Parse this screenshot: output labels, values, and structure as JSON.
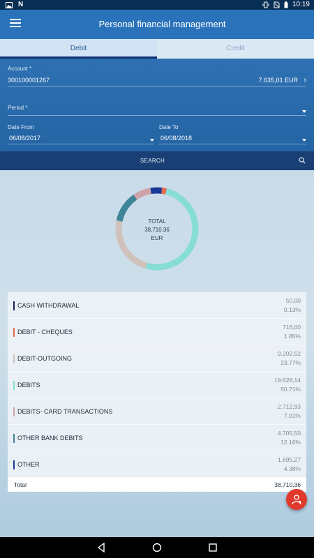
{
  "status_bar": {
    "time": "10:19",
    "left_icons": [
      "image-icon",
      "n-icon"
    ],
    "right_icons": [
      "vibrate-icon",
      "no-sim-icon",
      "battery-icon"
    ]
  },
  "header": {
    "title": "Personal financial management"
  },
  "tabs": [
    {
      "label": "Debit",
      "active": true
    },
    {
      "label": "Credit",
      "active": false
    }
  ],
  "form": {
    "account_label": "Account *",
    "account_value": "300100001267",
    "account_amount": "7.635,01 EUR",
    "period_label": "Period *",
    "period_value": "",
    "date_from_label": "Date From",
    "date_from_value": "06/08/2017",
    "date_to_label": "Date To",
    "date_to_value": "06/08/2018"
  },
  "search": {
    "label": "SEARCH"
  },
  "donut": {
    "total_label": "TOTAL",
    "total_value": "38,710.36",
    "currency": "EUR"
  },
  "categories": [
    {
      "name": "CASH WITHDRAWAL",
      "amount": "50,00",
      "percent": "0.13%",
      "pct_value": 0.13,
      "color": "#1d1f4f"
    },
    {
      "name": "DEBIT - CHEQUES",
      "amount": "716,00",
      "percent": "1.85%",
      "pct_value": 1.85,
      "color": "#e86a4f"
    },
    {
      "name": "DEBIT-OUTGOING",
      "amount": "9.202,52",
      "percent": "23.77%",
      "pct_value": 23.77,
      "color": "#d0c1bb"
    },
    {
      "name": "DEBITS",
      "amount": "19.628,14",
      "percent": "50.71%",
      "pct_value": 50.71,
      "color": "#86ddd6"
    },
    {
      "name": "DEBITS- CARD TRANSACTIONS",
      "amount": "2.712,93",
      "percent": "7.01%",
      "pct_value": 7.01,
      "color": "#cfa3a8"
    },
    {
      "name": "OTHER BANK DEBITS",
      "amount": "4.705,50",
      "percent": "12.16%",
      "pct_value": 12.16,
      "color": "#3e8597"
    },
    {
      "name": "OTHER",
      "amount": "1.695,27",
      "percent": "4.38%",
      "pct_value": 4.38,
      "color": "#1a3a9a"
    }
  ],
  "total": {
    "label": "Total",
    "amount": "38.710,36"
  },
  "fab": {
    "icon": "user-support-icon",
    "color": "#e0392c"
  },
  "nav_bar": {
    "buttons": [
      "back-icon",
      "home-icon",
      "recents-icon"
    ]
  }
}
